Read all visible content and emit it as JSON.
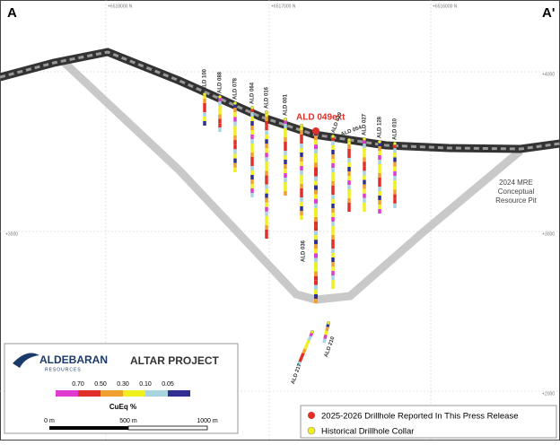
{
  "section": {
    "start": "A",
    "end": "A'"
  },
  "grid": {
    "top_labels": [
      "+6518000 N",
      "+6517000 N",
      "+6516000 N"
    ],
    "left_labels": [
      "+4000",
      "+3000"
    ],
    "right_labels": [
      "+4000",
      "+3000",
      "+2000"
    ]
  },
  "drillholes": [
    {
      "label": "ALD 100"
    },
    {
      "label": "ALD 088"
    },
    {
      "label": "ALD 078"
    },
    {
      "label": "ALD 064"
    },
    {
      "label": "ALD 016"
    },
    {
      "label": "ALD 001"
    },
    {
      "label": "ALD 049ext"
    },
    {
      "label": "ALD 019"
    },
    {
      "label": "ALD 054"
    },
    {
      "label": "ALD 027"
    },
    {
      "label": "ALD 128"
    },
    {
      "label": "ALD 010"
    },
    {
      "label": "ALD 036"
    },
    {
      "label": "ALD 217"
    },
    {
      "label": "ALD 210"
    }
  ],
  "pit_label": [
    "2024 MRE",
    "Conceptual",
    "Resource Pit"
  ],
  "legend": {
    "company": "ALDEBARAN",
    "company_sub": "RESOURCES",
    "project": "ALTAR PROJECT",
    "scale_labels": [
      "0.70",
      "0.50",
      "0.30",
      "0.10",
      "0.05"
    ],
    "scale_title": "CuEq %",
    "distance_labels": [
      "0 m",
      "500 m",
      "1000 m"
    ]
  },
  "key": {
    "new": "2025-2026 Drillhole Reported In This Press Release",
    "historical": "Historical Drillhole Collar"
  }
}
